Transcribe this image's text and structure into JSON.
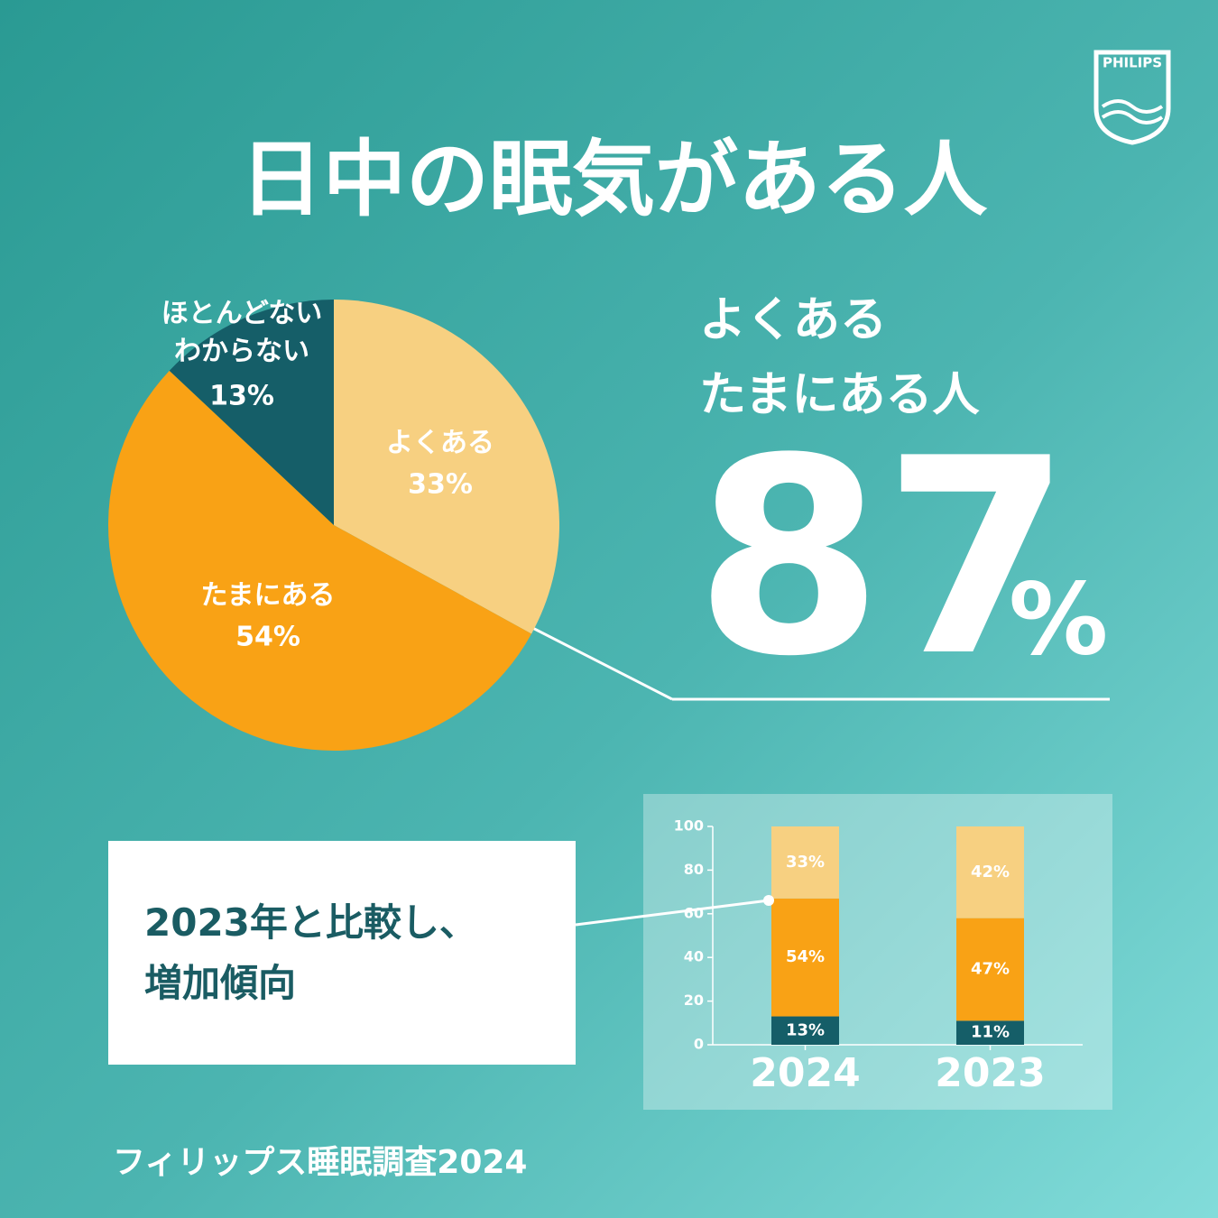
{
  "title": "日中の眠気がある人",
  "logo": "PHILIPS",
  "headline": {
    "label": "よくある\nたまにある人",
    "value": 87,
    "unit": "%"
  },
  "callout": "2023年と比較し、\n増加傾向",
  "source": "フィリップス睡眠調査2024",
  "chart_data": [
    {
      "type": "pie",
      "categories": [
        "よくある",
        "たまにある",
        "ほとんどない\nわからない"
      ],
      "values": [
        33,
        54,
        13
      ],
      "value_labels": [
        "33%",
        "54%",
        "13%"
      ],
      "colors": [
        "#f7d081",
        "#f9a215",
        "#155e68"
      ]
    },
    {
      "type": "stacked-bar",
      "categories": [
        "2024",
        "2023"
      ],
      "ylim": [
        0,
        100
      ],
      "yticks": [
        0,
        20,
        40,
        60,
        80,
        100
      ],
      "series": [
        {
          "color": "#155e68",
          "values": [
            13,
            11
          ],
          "value_labels": [
            "13%",
            "11%"
          ]
        },
        {
          "color": "#f9a215",
          "values": [
            54,
            47
          ],
          "value_labels": [
            "54%",
            "47%"
          ]
        },
        {
          "color": "#f7d081",
          "values": [
            33,
            42
          ],
          "value_labels": [
            "33%",
            "42%"
          ]
        }
      ]
    }
  ]
}
